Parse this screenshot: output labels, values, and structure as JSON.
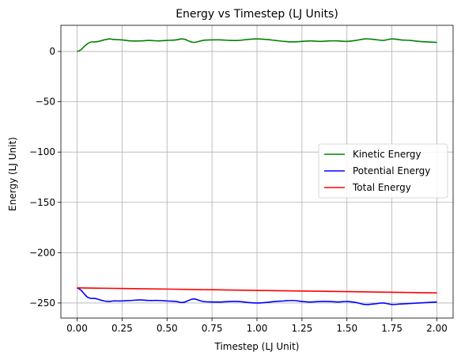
{
  "chart_data": {
    "type": "line",
    "title": "Energy vs Timestep (LJ Units)",
    "xlabel": "Timestep (LJ Unit)",
    "ylabel": "Energy (LJ Unit)",
    "xlim": [
      -0.09,
      2.09
    ],
    "ylim": [
      -265,
      26
    ],
    "xticks": [
      0.0,
      0.25,
      0.5,
      0.75,
      1.0,
      1.25,
      1.5,
      1.75,
      2.0
    ],
    "xtick_labels": [
      "0.00",
      "0.25",
      "0.50",
      "0.75",
      "1.00",
      "1.25",
      "1.50",
      "1.75",
      "2.00"
    ],
    "yticks": [
      -250,
      -200,
      -150,
      -100,
      -50,
      0
    ],
    "ytick_labels": [
      "−250",
      "−200",
      "−150",
      "−100",
      "−50",
      "0"
    ],
    "grid": true,
    "legend_position": "center-right",
    "series": [
      {
        "name": "Kinetic Energy",
        "color": "#008000",
        "x": [
          0.0,
          0.02,
          0.04,
          0.06,
          0.08,
          0.1,
          0.12,
          0.15,
          0.18,
          0.2,
          0.25,
          0.3,
          0.35,
          0.4,
          0.45,
          0.5,
          0.55,
          0.58,
          0.6,
          0.62,
          0.65,
          0.7,
          0.75,
          0.8,
          0.85,
          0.9,
          0.95,
          1.0,
          1.05,
          1.1,
          1.15,
          1.2,
          1.25,
          1.3,
          1.35,
          1.4,
          1.45,
          1.5,
          1.55,
          1.6,
          1.65,
          1.7,
          1.75,
          1.8,
          1.85,
          1.9,
          1.95,
          2.0
        ],
        "y": [
          0.0,
          1.5,
          5.0,
          8.0,
          9.5,
          9.5,
          10.0,
          11.5,
          12.5,
          12.0,
          11.5,
          10.5,
          10.5,
          11.0,
          10.5,
          11.0,
          11.5,
          12.5,
          12.0,
          10.5,
          9.0,
          11.0,
          11.5,
          11.5,
          11.0,
          11.0,
          12.0,
          12.5,
          12.0,
          11.0,
          10.0,
          9.5,
          10.0,
          10.5,
          10.0,
          10.5,
          10.5,
          10.0,
          11.0,
          12.5,
          12.0,
          11.0,
          12.5,
          11.5,
          11.0,
          10.0,
          9.5,
          9.0
        ]
      },
      {
        "name": "Potential Energy",
        "color": "#0000ff",
        "x": [
          0.0,
          0.02,
          0.04,
          0.06,
          0.08,
          0.1,
          0.12,
          0.15,
          0.18,
          0.2,
          0.25,
          0.3,
          0.35,
          0.4,
          0.45,
          0.5,
          0.55,
          0.58,
          0.6,
          0.62,
          0.65,
          0.7,
          0.75,
          0.8,
          0.85,
          0.9,
          0.95,
          1.0,
          1.05,
          1.1,
          1.15,
          1.2,
          1.25,
          1.3,
          1.35,
          1.4,
          1.45,
          1.5,
          1.55,
          1.6,
          1.65,
          1.7,
          1.75,
          1.8,
          1.85,
          1.9,
          1.95,
          2.0
        ],
        "y": [
          -235.0,
          -237.0,
          -241.0,
          -244.5,
          -245.5,
          -245.5,
          -246.5,
          -248.0,
          -248.5,
          -248.0,
          -248.0,
          -247.5,
          -247.0,
          -247.5,
          -247.5,
          -248.0,
          -248.5,
          -249.5,
          -249.0,
          -247.5,
          -246.0,
          -248.5,
          -249.0,
          -249.0,
          -248.5,
          -248.5,
          -249.5,
          -250.0,
          -249.5,
          -248.5,
          -248.0,
          -247.5,
          -248.5,
          -249.0,
          -248.5,
          -248.5,
          -249.0,
          -248.5,
          -249.5,
          -251.5,
          -251.0,
          -250.0,
          -251.5,
          -251.0,
          -250.5,
          -250.0,
          -249.5,
          -249.0
        ]
      },
      {
        "name": "Total Energy",
        "color": "#ff0000",
        "x": [
          0.0,
          0.5,
          1.0,
          1.5,
          2.0
        ],
        "y": [
          -235.0,
          -236.2,
          -237.5,
          -238.7,
          -240.0
        ]
      }
    ]
  }
}
